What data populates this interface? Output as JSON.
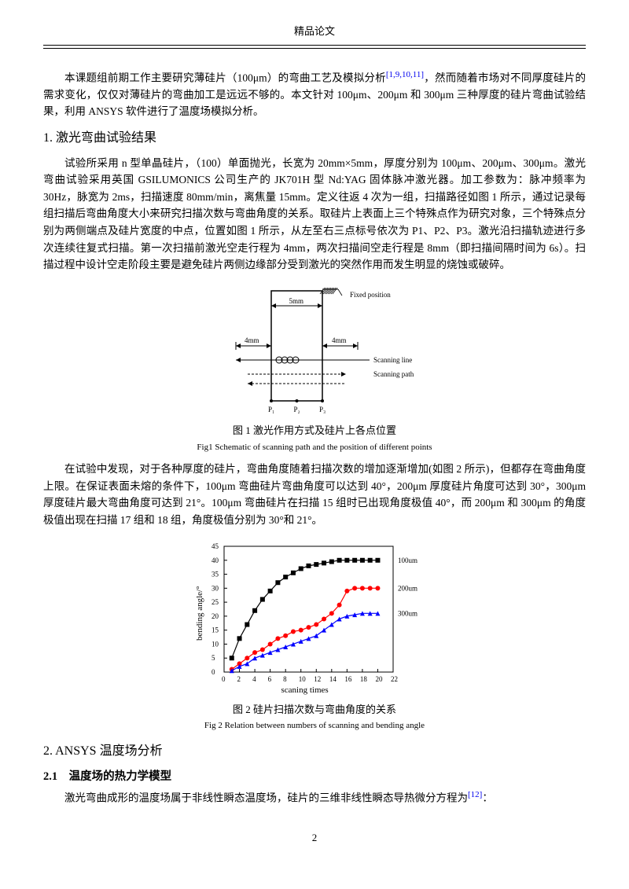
{
  "header": {
    "title": "精品论文"
  },
  "intro": {
    "text": "本课题组前期工作主要研究薄硅片（100μm）的弯曲工艺及模拟分析",
    "refs": "[1,9,10,11]",
    "text2": "，然而随着市场对不同厚度硅片的需求变化，仅仅对薄硅片的弯曲加工是远远不够的。本文针对 100μm、200μm 和 300μm 三种厚度的硅片弯曲试验结果，利用 ANSYS 软件进行了温度场模拟分析。"
  },
  "sec1": {
    "heading": "1. 激光弯曲试验结果",
    "p1": "试验所采用 n 型单晶硅片，（100）单面抛光，长宽为 20mm×5mm，厚度分别为 100μm、200μm、300μm。激光弯曲试验采用英国 GSILUMONICS 公司生产的 JK701H 型 Nd:YAG 固体脉冲激光器。加工参数为：脉冲频率为 30Hz，脉宽为 2ms，扫描速度 80mm/min，离焦量 15mm。定义往返 4 次为一组，扫描路径如图 1 所示，通过记录每组扫描后弯曲角度大小来研究扫描次数与弯曲角度的关系。取硅片上表面上三个特殊点作为研究对象，三个特殊点分别为两侧端点及硅片宽度的中点，位置如图 1 所示，从左至右三点标号依次为 P1、P2、P3。激光沿扫描轨迹进行多次连续往复式扫描。第一次扫描前激光空走行程为 4mm，两次扫描间空走行程是 8mm（即扫描间隔时间为 6s）。扫描过程中设计空走阶段主要是避免硅片两侧边缘部分受到激光的突然作用而发生明显的烧蚀或破碎。"
  },
  "fig1": {
    "caption_cn": "图 1 激光作用方式及硅片上各点位置",
    "caption_en": "Fig1 Schematic of scanning path and the position of different points",
    "labels": {
      "fixed": "Fixed position",
      "scan_line": "Scanning line",
      "scan_path": "Scanning path",
      "dim_top": "5mm",
      "dim_left": "4mm",
      "dim_right": "4mm",
      "p1": "P₁",
      "p2": "P₂",
      "p3": "P₃"
    },
    "style": {
      "stroke": "#000",
      "font": "9px",
      "font_family": "serif"
    }
  },
  "sec1b": {
    "p2": "在试验中发现，对于各种厚度的硅片，弯曲角度随着扫描次数的增加逐渐增加(如图 2 所示)，但都存在弯曲角度上限。在保证表面未熔的条件下，100μm 弯曲硅片弯曲角度可以达到 40°，200μm 厚度硅片角度可达到 30°，300μm 厚度硅片最大弯曲角度可达到 21°。100μm 弯曲硅片在扫描 15 组时已出现角度极值 40°，而 200μm 和 300μm 的角度极值出现在扫描 17 组和 18 组，角度极值分别为 30°和 21°。"
  },
  "fig2": {
    "caption_cn": "图 2 硅片扫描次数与弯曲角度的关系",
    "caption_en": "Fig 2 Relation between numbers of scanning and bending angle",
    "type": "line",
    "xlabel": "scaning times",
    "ylabel": "bending angle/°",
    "xlim": [
      0,
      22
    ],
    "xtick_step": 2,
    "ylim": [
      0,
      45
    ],
    "ytick_step": 5,
    "label_fontsize": 11,
    "tick_fontsize": 9,
    "background_color": "#ffffff",
    "axis_color": "#000000",
    "series": [
      {
        "name": "100um",
        "color": "#000000",
        "marker": "square",
        "marker_size": 3,
        "x": [
          1,
          2,
          3,
          4,
          5,
          6,
          7,
          8,
          9,
          10,
          11,
          12,
          13,
          14,
          15,
          16,
          17,
          18,
          19,
          20
        ],
        "y": [
          5,
          12,
          17,
          22,
          26,
          29,
          32,
          34,
          35.5,
          37,
          38,
          38.5,
          39,
          39.5,
          40,
          40,
          40,
          40,
          40,
          40
        ]
      },
      {
        "name": "200um",
        "color": "#ff0000",
        "marker": "circle",
        "marker_size": 3,
        "x": [
          1,
          2,
          3,
          4,
          5,
          6,
          7,
          8,
          9,
          10,
          11,
          12,
          13,
          14,
          15,
          16,
          17,
          18,
          19,
          20
        ],
        "y": [
          1,
          3,
          5,
          7,
          8,
          10,
          12,
          13,
          14.5,
          15,
          16,
          17,
          19,
          21,
          24,
          29,
          30,
          30,
          30,
          30
        ]
      },
      {
        "name": "300um",
        "color": "#0000ff",
        "marker": "triangle",
        "marker_size": 3,
        "x": [
          1,
          2,
          3,
          4,
          5,
          6,
          7,
          8,
          9,
          10,
          11,
          12,
          13,
          14,
          15,
          16,
          17,
          18,
          19,
          20
        ],
        "y": [
          0.5,
          2,
          3,
          5,
          6,
          7,
          8,
          9,
          10,
          11,
          12,
          13,
          15,
          17,
          19,
          20,
          20.5,
          21,
          21,
          21
        ]
      }
    ],
    "legend_labels": {
      "s1": "100um",
      "s2": "200um",
      "s3": "300um"
    }
  },
  "sec2": {
    "heading": "2. ANSYS 温度场分析",
    "sub1_heading": "2.1　温度场的热力学模型",
    "sub1_p": "激光弯曲成形的温度场属于非线性瞬态温度场，硅片的三维非线性瞬态导热微分方程为",
    "sub1_ref": "[12]",
    "sub1_tail": "："
  },
  "pagenum": "2"
}
